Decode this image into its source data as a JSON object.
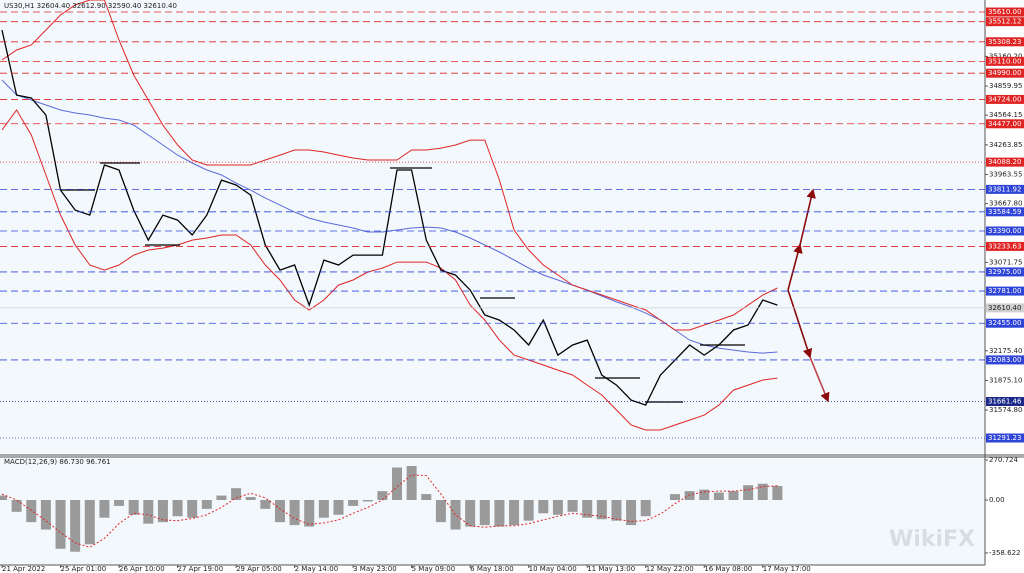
{
  "chart_data": [
    {
      "type": "line",
      "title": "US30,H1  32604.40 32612.90 32590.40 32610.40",
      "watermark": "WikiFX",
      "ylim": [
        31119,
        35732
      ],
      "yticks": [
        {
          "value": 35160.2,
          "label": "35160.20"
        },
        34859.95,
        34564.15,
        34263.85,
        33963.55,
        {
          "value": 33667.8,
          "label": "33667.80"
        },
        33071.75,
        {
          "value": 32175.4,
          "label": "32175.40"
        },
        {
          "value": 31875.1,
          "label": "31875.10"
        },
        {
          "value": 31574.8,
          "label": "31574.80"
        }
      ],
      "levels": [
        {
          "value": 35610,
          "label": "35610.00",
          "color": "#e02424",
          "dash": "dashed"
        },
        {
          "value": 35512.12,
          "label": "35512.12",
          "color": "#e02424",
          "dash": "dashed"
        },
        {
          "value": 35308.23,
          "label": "35308.23",
          "color": "#e02424",
          "dash": "dashed"
        },
        {
          "value": 35110,
          "label": "35110.00",
          "color": "#e02424",
          "dash": "dashed"
        },
        {
          "value": 34990,
          "label": "34990.00",
          "color": "#e02424",
          "dash": "dashed"
        },
        {
          "value": 34724,
          "label": "34724.00",
          "color": "#e02424",
          "dash": "dashed"
        },
        {
          "value": 34477,
          "label": "34477.00",
          "color": "#e02424",
          "dash": "dashed"
        },
        {
          "value": 34088.2,
          "label": "34088.20",
          "color": "#e02424",
          "dash": "dotted"
        },
        {
          "value": 33811.92,
          "label": "33811.92",
          "color": "#2f45d8",
          "dash": "dashed"
        },
        {
          "value": 33584.59,
          "label": "33584.59",
          "color": "#2f45d8",
          "dash": "dashed"
        },
        {
          "value": 33390,
          "label": "33390.00",
          "color": "#2f45d8",
          "dash": "dashed"
        },
        {
          "value": 33233.63,
          "label": "33233.63",
          "color": "#e02424",
          "dash": "dashed"
        },
        {
          "value": 32975,
          "label": "32975.00",
          "color": "#2f45d8",
          "dash": "dashed"
        },
        {
          "value": 32781,
          "label": "32781.00",
          "color": "#2f45d8",
          "dash": "dashed"
        },
        {
          "value": 32455,
          "label": "32455.00",
          "color": "#2f45d8",
          "dash": "dashed"
        },
        {
          "value": 32083,
          "label": "32083.00",
          "color": "#2f45d8",
          "dash": "dashed"
        },
        {
          "value": 31661.46,
          "label": "31661.46",
          "color": "#1c2a8c",
          "dash": "dotted"
        },
        {
          "value": 31291.23,
          "label": "31291.23",
          "color": "#2f45d8",
          "dash": "dotted"
        }
      ],
      "current": {
        "value": 32610.4,
        "label": "32610.40",
        "color": "#cfcfcf"
      },
      "series": [
        {
          "color": "#000000",
          "values": [
            35427,
            34768,
            34738,
            34566,
            33805,
            33602,
            33551,
            34059,
            34008,
            33602,
            33298,
            33551,
            33501,
            33349,
            33551,
            33906,
            33856,
            33754,
            33247,
            32994,
            33045,
            32639,
            33095,
            33045,
            33146,
            33146,
            33146,
            34008,
            34008,
            33298,
            32994,
            32943,
            32791,
            32538,
            32487,
            32386,
            32234,
            32487,
            32132,
            32234,
            32284,
            31929,
            31828,
            31676,
            31625,
            31929,
            32081,
            32234,
            32132,
            32234,
            32386,
            32437,
            32690,
            32639
          ]
        },
        {
          "color": "#e02424",
          "values": [
            35124,
            35225,
            35276,
            35428,
            35580,
            35681,
            35732,
            35732,
            35326,
            34972,
            34718,
            34464,
            34262,
            34110,
            34059,
            34059,
            34059,
            34059,
            34110,
            34160,
            34211,
            34211,
            34191,
            34160,
            34130,
            34110,
            34110,
            34110,
            34211,
            34211,
            34231,
            34262,
            34312,
            34312,
            33907,
            33400,
            33197,
            33045,
            32944,
            32842,
            32791,
            32741,
            32690,
            32639,
            32589,
            32487,
            32386,
            32386,
            32437,
            32487,
            32538,
            32639,
            32741,
            32812
          ]
        },
        {
          "color": "#e02424",
          "values": [
            34414,
            34617,
            34363,
            33958,
            33552,
            33248,
            33045,
            32994,
            33045,
            33146,
            33197,
            33217,
            33248,
            33298,
            33319,
            33349,
            33349,
            33248,
            33045,
            32893,
            32690,
            32589,
            32690,
            32842,
            32893,
            32974,
            33014,
            33075,
            33075,
            33075,
            33014,
            32893,
            32639,
            32487,
            32284,
            32132,
            32082,
            32031,
            31980,
            31930,
            31828,
            31727,
            31575,
            31423,
            31372,
            31372,
            31423,
            31473,
            31524,
            31625,
            31777,
            31828,
            31879,
            31899
          ]
        },
        {
          "color": "#5a6ad8",
          "values": [
            34921,
            34769,
            34718,
            34667,
            34617,
            34586,
            34566,
            34535,
            34515,
            34464,
            34363,
            34262,
            34160,
            34079,
            34008,
            33958,
            33876,
            33805,
            33724,
            33653,
            33582,
            33521,
            33481,
            33451,
            33420,
            33380,
            33380,
            33400,
            33420,
            33430,
            33420,
            33380,
            33319,
            33248,
            33177,
            33096,
            33014,
            32944,
            32893,
            32842,
            32791,
            32731,
            32671,
            32619,
            32558,
            32487,
            32386,
            32284,
            32234,
            32203,
            32183,
            32163,
            32152,
            32163
          ]
        }
      ]
    },
    {
      "type": "bar",
      "title": "MACD(12,26,9) 86.730 96.761",
      "ylim": [
        -440,
        291
      ],
      "yticks": [
        270.724,
        {
          "value": 0,
          "label": "0.00"
        },
        -358.622
      ],
      "categories": [
        "21 Apr 2022",
        null,
        null,
        null,
        "25 Apr 01:00",
        null,
        null,
        null,
        "26 Apr 10:00",
        null,
        null,
        null,
        "27 Apr 19:00",
        null,
        null,
        null,
        "29 Apr 05:00",
        null,
        null,
        null,
        "2 May 14:00",
        null,
        null,
        null,
        "3 May 23:00",
        null,
        null,
        null,
        "5 May 09:00",
        null,
        null,
        null,
        "6 May 18:00",
        null,
        null,
        null,
        "10 May 04:00",
        null,
        null,
        null,
        "11 May 13:00",
        null,
        null,
        null,
        "12 May 22:00",
        null,
        null,
        null,
        "16 May 08:00",
        null,
        null,
        null,
        "17 May 17:00",
        null
      ],
      "series": [
        {
          "color": "#9a9a9a",
          "values": [
            30,
            -80,
            -150,
            -200,
            -330,
            -350,
            -300,
            -120,
            -40,
            -100,
            -160,
            -150,
            -110,
            -120,
            -60,
            30,
            80,
            20,
            -60,
            -150,
            -170,
            -180,
            -120,
            -100,
            -40,
            -10,
            60,
            220,
            230,
            40,
            -150,
            -200,
            -180,
            -170,
            -180,
            -170,
            -140,
            -90,
            -100,
            -80,
            -120,
            -130,
            -140,
            -170,
            -110,
            0,
            40,
            60,
            70,
            50,
            60,
            100,
            110,
            95
          ]
        },
        {
          "color": "#e02424",
          "line_style": "dotted",
          "values": [
            40,
            0,
            -70,
            -140,
            -220,
            -290,
            -320,
            -260,
            -160,
            -90,
            -100,
            -135,
            -140,
            -125,
            -100,
            -50,
            15,
            45,
            15,
            -60,
            -125,
            -165,
            -155,
            -135,
            -90,
            -50,
            0,
            90,
            170,
            165,
            40,
            -100,
            -175,
            -185,
            -175,
            -175,
            -160,
            -135,
            -110,
            -90,
            -100,
            -110,
            -130,
            -145,
            -140,
            -95,
            -25,
            35,
            55,
            60,
            60,
            70,
            90,
            97
          ]
        }
      ]
    }
  ]
}
